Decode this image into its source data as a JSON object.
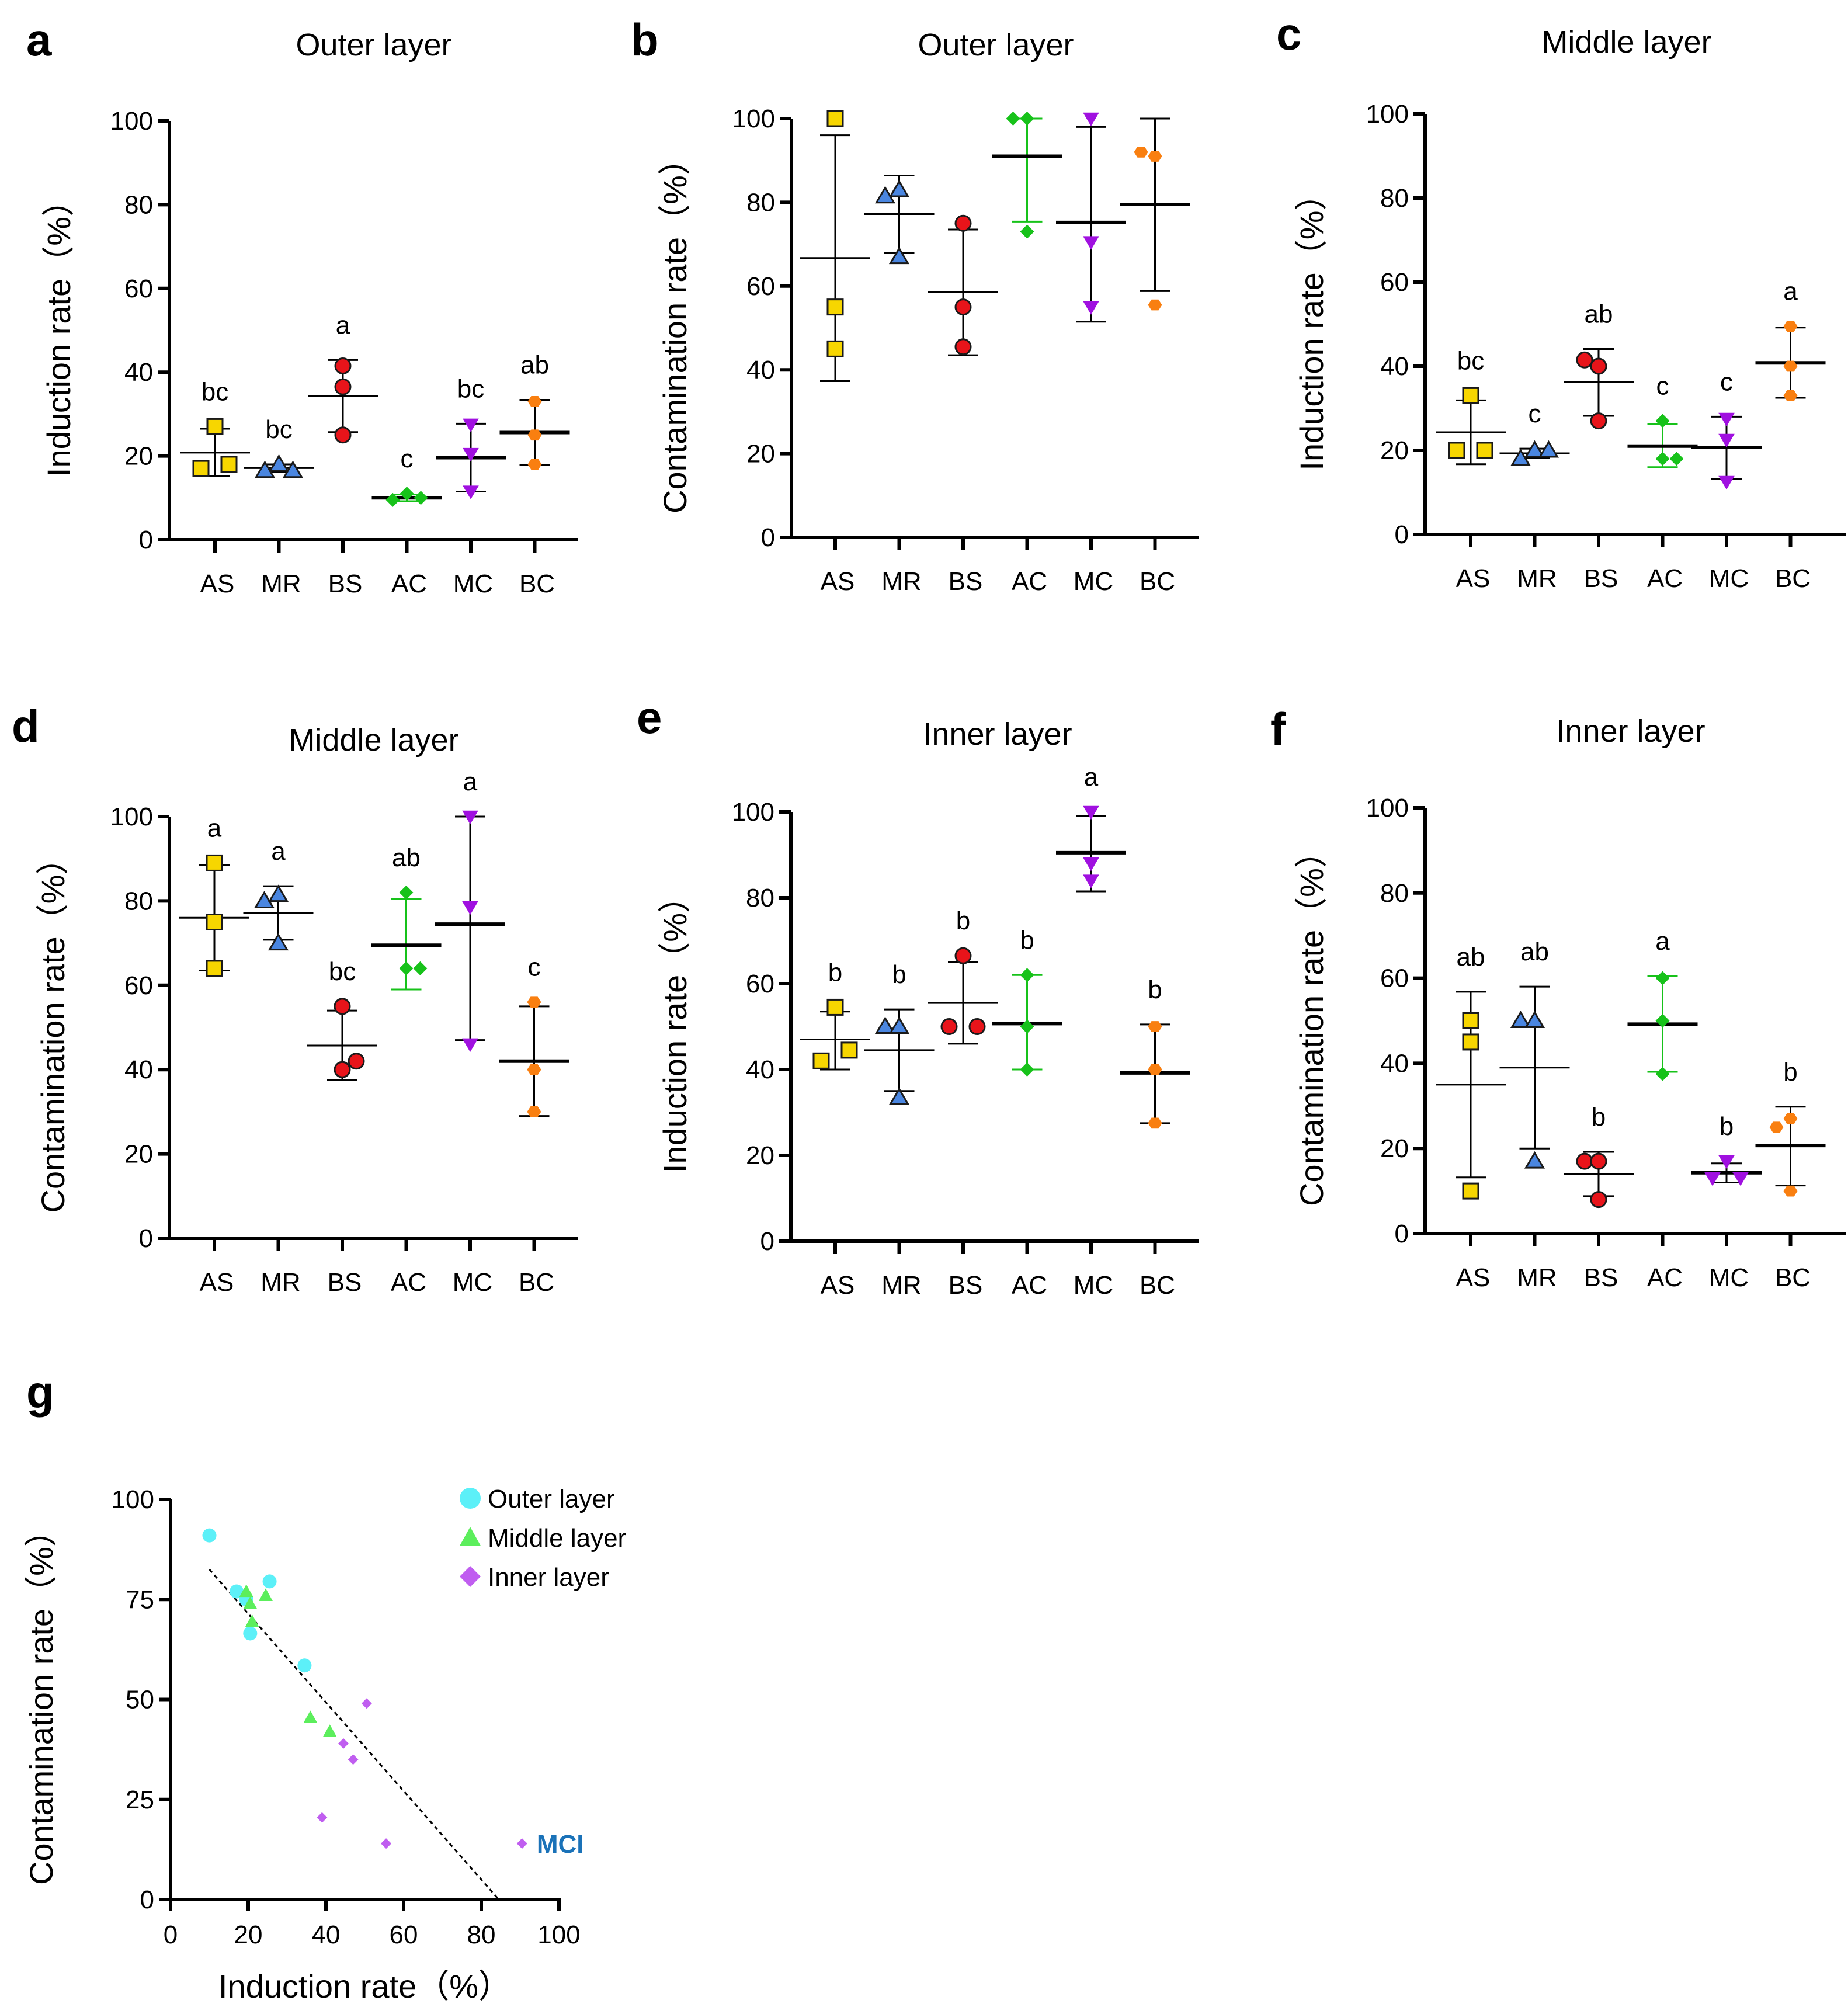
{
  "figure": {
    "categories": [
      "AS",
      "MR",
      "BS",
      "AC",
      "MC",
      "BC"
    ],
    "group_colors": {
      "AS": "#f7d600",
      "MR": "#4a86e0",
      "BS": "#e8141a",
      "AC": "#17c21a",
      "MC": "#a010e0",
      "BC": "#f97f10"
    },
    "group_markers": {
      "AS": "square",
      "MR": "triangle-up",
      "BS": "circle",
      "AC": "diamond",
      "MC": "triangle-down",
      "BC": "hexagon"
    }
  },
  "chart_data": [
    {
      "panel": "a",
      "type": "scatter",
      "title": "Outer layer",
      "xlabel": "",
      "ylabel": "Induction rate（%）",
      "ylim": [
        0,
        100
      ],
      "yticks": [
        "0",
        "20",
        "40",
        "60",
        "80",
        "100"
      ],
      "categories": [
        "AS",
        "MR",
        "BS",
        "AC",
        "MC",
        "BC"
      ],
      "points": [
        [
          17,
          27,
          18
        ],
        [
          16.5,
          18,
          16.5
        ],
        [
          41.5,
          36.5,
          25
        ],
        [
          9.5,
          11,
          10
        ],
        [
          27.5,
          20.5,
          11.5
        ],
        [
          33,
          25,
          18
        ]
      ],
      "mean": [
        20.8,
        17.1,
        34.3,
        10.0,
        19.6,
        25.6
      ],
      "sd_low": [
        15.2,
        16.2,
        25.7,
        9.2,
        11.5,
        17.8
      ],
      "sd_high": [
        26.5,
        18.0,
        42.9,
        10.8,
        27.7,
        33.4
      ],
      "letters": [
        "bc",
        "bc",
        "a",
        "c",
        "bc",
        "ab"
      ]
    },
    {
      "panel": "b",
      "type": "scatter",
      "title": "Outer layer",
      "xlabel": "",
      "ylabel": "Contamination rate（%）",
      "ylim": [
        0,
        100
      ],
      "yticks": [
        "0",
        "20",
        "40",
        "60",
        "80",
        "100"
      ],
      "categories": [
        "AS",
        "MR",
        "BS",
        "AC",
        "MC",
        "BC"
      ],
      "points": [
        [
          100,
          55,
          45
        ],
        [
          81.5,
          83,
          67
        ],
        [
          75,
          55,
          45.5
        ],
        [
          100,
          100,
          73
        ],
        [
          100,
          70.5,
          55
        ],
        [
          92,
          91,
          55.5
        ]
      ],
      "mean": [
        66.7,
        77.2,
        58.5,
        91.0,
        75.2,
        79.5
      ],
      "sd_low": [
        37.3,
        68.0,
        43.5,
        75.4,
        51.5,
        58.8
      ],
      "sd_high": [
        96.0,
        86.4,
        73.5,
        100,
        98.0,
        100
      ],
      "letters": [
        "",
        "",
        "",
        "",
        "",
        ""
      ]
    },
    {
      "panel": "c",
      "type": "scatter",
      "title": "Middle layer",
      "xlabel": "",
      "ylabel": "Induction rate（%）",
      "ylim": [
        0,
        100
      ],
      "yticks": [
        "0",
        "20",
        "40",
        "60",
        "80",
        "100"
      ],
      "categories": [
        "AS",
        "MR",
        "BS",
        "AC",
        "MC",
        "BC"
      ],
      "points": [
        [
          20,
          33,
          20
        ],
        [
          18,
          20,
          20
        ],
        [
          41.5,
          40,
          27
        ],
        [
          27,
          18,
          18
        ],
        [
          27.5,
          22.5,
          12.5
        ],
        [
          49.5,
          40,
          33
        ]
      ],
      "mean": [
        24.3,
        19.3,
        36.2,
        21.0,
        20.7,
        40.8
      ],
      "sd_low": [
        16.7,
        18.2,
        28.2,
        16.0,
        13.2,
        32.5
      ],
      "sd_high": [
        31.9,
        20.4,
        44.1,
        26.2,
        28.0,
        49.2
      ],
      "letters": [
        "bc",
        "c",
        "ab",
        "c",
        "c",
        "a"
      ]
    },
    {
      "panel": "d",
      "type": "scatter",
      "title": "Middle layer",
      "xlabel": "",
      "ylabel": "Contamination rate（%）",
      "ylim": [
        0,
        100
      ],
      "yticks": [
        "0",
        "20",
        "40",
        "60",
        "80",
        "100"
      ],
      "categories": [
        "AS",
        "MR",
        "BS",
        "AC",
        "MC",
        "BC"
      ],
      "points": [
        [
          89,
          75,
          64
        ],
        [
          80,
          81.5,
          70
        ],
        [
          55,
          40,
          42
        ],
        [
          82,
          64,
          64
        ],
        [
          100,
          78.5,
          46
        ],
        [
          56,
          40,
          30
        ]
      ],
      "mean": [
        76.0,
        77.2,
        45.7,
        69.5,
        74.5,
        42.0
      ],
      "sd_low": [
        63.5,
        70.8,
        37.5,
        59.0,
        47.0,
        29.0
      ],
      "sd_high": [
        88.5,
        83.5,
        54.0,
        80.5,
        100,
        55.0
      ],
      "letters": [
        "a",
        "a",
        "bc",
        "ab",
        "a",
        "c"
      ]
    },
    {
      "panel": "e",
      "type": "scatter",
      "title": "Inner layer",
      "xlabel": "",
      "ylabel": "Induction rate（%）",
      "ylim": [
        0,
        100
      ],
      "yticks": [
        "0",
        "20",
        "40",
        "60",
        "80",
        "100"
      ],
      "categories": [
        "AS",
        "MR",
        "BS",
        "AC",
        "MC",
        "BC"
      ],
      "points": [
        [
          42,
          54.5,
          44.5
        ],
        [
          50,
          50,
          33.5
        ],
        [
          50,
          66.5,
          50
        ],
        [
          62,
          50,
          40
        ],
        [
          100,
          88,
          84
        ],
        [
          50,
          40,
          27.5
        ]
      ],
      "mean": [
        47.0,
        44.5,
        55.5,
        50.7,
        90.5,
        39.2
      ],
      "sd_low": [
        40.0,
        35.0,
        46.0,
        40.0,
        81.5,
        27.5
      ],
      "sd_high": [
        53.5,
        54.0,
        65.0,
        62.0,
        99.0,
        50.5
      ],
      "letters": [
        "b",
        "b",
        "b",
        "b",
        "a",
        "b"
      ]
    },
    {
      "panel": "f",
      "type": "scatter",
      "title": "Inner layer",
      "xlabel": "",
      "ylabel": "Contamination rate（%）",
      "ylim": [
        0,
        100
      ],
      "yticks": [
        "0",
        "20",
        "40",
        "60",
        "80",
        "100"
      ],
      "categories": [
        "AS",
        "MR",
        "BS",
        "AC",
        "MC",
        "BC"
      ],
      "points": [
        [
          50,
          45,
          10
        ],
        [
          50,
          50,
          17
        ],
        [
          17,
          17,
          8
        ],
        [
          60,
          50,
          37.5
        ],
        [
          13,
          17,
          13
        ],
        [
          25,
          27,
          10
        ]
      ],
      "mean": [
        35.0,
        39.0,
        14.0,
        49.2,
        14.3,
        20.7
      ],
      "sd_low": [
        13.2,
        20.0,
        8.8,
        38.0,
        12.0,
        11.3
      ],
      "sd_high": [
        56.8,
        58.0,
        19.2,
        60.5,
        16.5,
        29.8
      ],
      "letters": [
        "ab",
        "ab",
        "b",
        "a",
        "b",
        "b"
      ]
    },
    {
      "panel": "g",
      "type": "scatter",
      "title": "",
      "xlabel": "Induction rate（%）",
      "ylabel": "Contamination rate（%）",
      "xlim": [
        0,
        100
      ],
      "ylim": [
        0,
        100
      ],
      "xticks": [
        "0",
        "20",
        "40",
        "60",
        "80",
        "100"
      ],
      "yticks": [
        "0",
        "25",
        "50",
        "75",
        "100"
      ],
      "legend_position": "top-right",
      "series": [
        {
          "name": "Outer layer",
          "color": "#5cf0f8",
          "marker": "circle",
          "points": [
            [
              10,
              91
            ],
            [
              17,
              77
            ],
            [
              19.5,
              75
            ],
            [
              20.5,
              66.5
            ],
            [
              25.5,
              79.5
            ],
            [
              34.5,
              58.5
            ]
          ]
        },
        {
          "name": "Middle layer",
          "color": "#5cee5c",
          "marker": "triangle",
          "points": [
            [
              19.5,
              77
            ],
            [
              20.5,
              74
            ],
            [
              21,
              69.5
            ],
            [
              24.5,
              76
            ],
            [
              36,
              45.5
            ],
            [
              41,
              42
            ]
          ]
        },
        {
          "name": "Inner layer",
          "color": "#c05ef0",
          "marker": "diamond",
          "points": [
            [
              39,
              20.5
            ],
            [
              44.5,
              39
            ],
            [
              47,
              35
            ],
            [
              50.5,
              49
            ],
            [
              55.5,
              14
            ],
            [
              90.5,
              14
            ]
          ]
        }
      ],
      "trendline": {
        "style": "dashed",
        "from": [
          10,
          82.5
        ],
        "to": [
          84.5,
          0
        ]
      },
      "annotations": [
        {
          "text": "MCI",
          "x": 90.5,
          "y": 14,
          "color": "#1a72b8"
        }
      ]
    }
  ]
}
